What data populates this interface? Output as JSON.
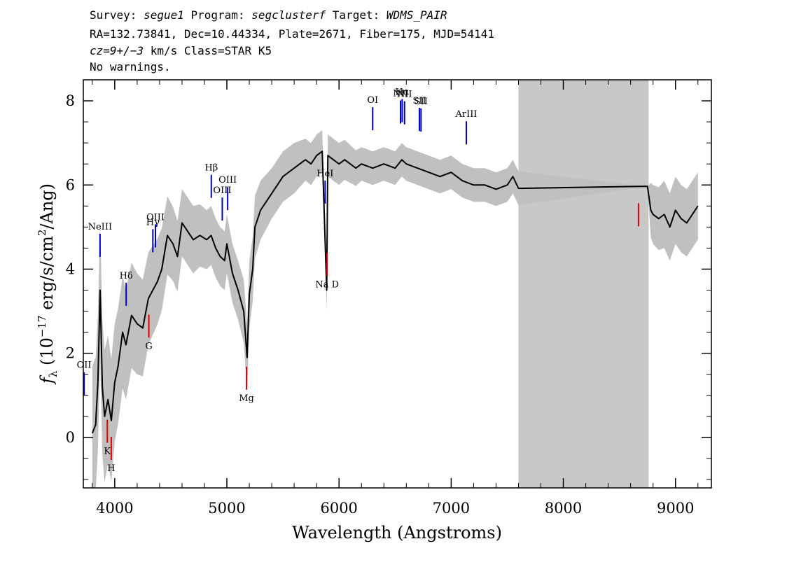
{
  "header": {
    "line1": [
      {
        "text": "Survey: ",
        "italic": false
      },
      {
        "text": "segue1",
        "italic": true
      },
      {
        "text": " Program: ",
        "italic": false
      },
      {
        "text": "segclusterf",
        "italic": true
      },
      {
        "text": " Target: ",
        "italic": false
      },
      {
        "text": "WDMS_PAIR",
        "italic": true
      }
    ],
    "line2": "RA=132.73841, Dec=10.44334, Plate=2671, Fiber=175, MJD=54141",
    "line3": [
      {
        "text": "cz=9+/−3",
        "italic": true
      },
      {
        "text": " km/s Class=STAR K5",
        "italic": false
      }
    ],
    "line4": "No warnings."
  },
  "chart_data": {
    "type": "line",
    "xlabel": "Wavelength (Angstroms)",
    "ylabel": "fλ (10⁻¹⁷ erg/s/cm²/Ang)",
    "xlim": [
      3720,
      9320
    ],
    "ylim": [
      -1.2,
      8.5
    ],
    "x_ticks": [
      4000,
      5000,
      6000,
      7000,
      8000,
      9000
    ],
    "y_ticks": [
      0,
      2,
      4,
      6,
      8
    ],
    "masked_region": [
      7600,
      8760
    ],
    "colors": {
      "flux": "#000000",
      "error": "#c0c0c0",
      "mask": "#c8c8c8",
      "emission": "#0000cc",
      "absorption": "#dd0000"
    },
    "series": [
      {
        "style": "flux",
        "x": [
          3800,
          3830,
          3850,
          3870,
          3890,
          3910,
          3940,
          3970,
          4000,
          4030,
          4070,
          4100,
          4150,
          4200,
          4250,
          4300,
          4340,
          4380,
          4420,
          4470,
          4520,
          4560,
          4600,
          4650,
          4700,
          4760,
          4820,
          4860,
          4900,
          4940,
          4980,
          5000,
          5050,
          5100,
          5150,
          5180,
          5200,
          5230,
          5250,
          5300,
          5350,
          5400,
          5450,
          5500,
          5550,
          5600,
          5650,
          5700,
          5750,
          5800,
          5850,
          5890,
          5900,
          5950,
          6000,
          6050,
          6100,
          6150,
          6200,
          6300,
          6400,
          6500,
          6560,
          6600,
          6700,
          6800,
          6900,
          7000,
          7100,
          7200,
          7300,
          7400,
          7500,
          7550,
          7600,
          8750,
          8780,
          8800,
          8850,
          8900,
          8950,
          9000,
          9050,
          9100,
          9150,
          9200
        ],
        "y": [
          0.1,
          0.3,
          1.3,
          3.5,
          1.2,
          0.5,
          0.9,
          0.4,
          1.3,
          1.7,
          2.5,
          2.2,
          2.9,
          2.7,
          2.6,
          3.3,
          3.5,
          3.7,
          4.0,
          4.8,
          4.6,
          4.3,
          5.1,
          4.9,
          4.7,
          4.8,
          4.7,
          4.8,
          4.5,
          4.3,
          4.2,
          4.6,
          3.9,
          3.5,
          3.0,
          1.9,
          3.4,
          4.0,
          5.0,
          5.4,
          5.6,
          5.8,
          6.0,
          6.2,
          6.3,
          6.4,
          6.5,
          6.6,
          6.5,
          6.7,
          6.8,
          3.5,
          6.7,
          6.6,
          6.5,
          6.6,
          6.5,
          6.4,
          6.5,
          6.4,
          6.5,
          6.4,
          6.6,
          6.5,
          6.4,
          6.3,
          6.2,
          6.3,
          6.1,
          6.0,
          6.0,
          5.9,
          6.0,
          6.2,
          5.92,
          5.97,
          5.4,
          5.3,
          5.2,
          5.3,
          5.0,
          5.4,
          5.2,
          5.1,
          5.3,
          5.5
        ]
      },
      {
        "style": "error",
        "x": [
          3800,
          3900,
          4000,
          4100,
          4200,
          4300,
          4400,
          4500,
          4600,
          4700,
          4800,
          4900,
          5000,
          5100,
          5200,
          5300,
          5400,
          5500,
          5600,
          5700,
          5800,
          5900,
          6000,
          6200,
          6400,
          6600,
          6800,
          7000,
          7200,
          7400,
          7600,
          8760,
          8800,
          8900,
          9000,
          9100,
          9200
        ],
        "y": [
          1.6,
          1.6,
          1.4,
          1.3,
          1.2,
          1.1,
          1.0,
          0.9,
          0.8,
          0.8,
          0.7,
          0.7,
          0.7,
          0.7,
          0.8,
          0.7,
          0.6,
          0.6,
          0.6,
          0.5,
          0.5,
          0.5,
          0.5,
          0.4,
          0.4,
          0.4,
          0.4,
          0.4,
          0.4,
          0.4,
          0.4,
          0.6,
          0.7,
          0.8,
          0.8,
          0.8,
          0.8
        ]
      }
    ],
    "annotations": [
      {
        "label": "OII",
        "x": 3727,
        "kind": "emission"
      },
      {
        "label": "NeIII",
        "x": 3869,
        "kind": "emission"
      },
      {
        "label": "Hδ",
        "x": 4102,
        "kind": "emission"
      },
      {
        "label": "Hγ",
        "x": 4340,
        "kind": "emission"
      },
      {
        "label": "OIII",
        "x": 4363,
        "kind": "emission"
      },
      {
        "label": "Hβ",
        "x": 4861,
        "kind": "emission"
      },
      {
        "label": "OIII",
        "x": 4959,
        "kind": "emission"
      },
      {
        "label": "OIII",
        "x": 5007,
        "kind": "emission"
      },
      {
        "label": "HeI",
        "x": 5876,
        "kind": "emission"
      },
      {
        "label": "OI",
        "x": 6300,
        "kind": "emission"
      },
      {
        "label": "NII",
        "x": 6548,
        "kind": "emission"
      },
      {
        "label": "Hα",
        "x": 6563,
        "kind": "emission"
      },
      {
        "label": "NII",
        "x": 6584,
        "kind": "emission"
      },
      {
        "label": "SII",
        "x": 6717,
        "kind": "emission"
      },
      {
        "label": "SII",
        "x": 6731,
        "kind": "emission"
      },
      {
        "label": "ArIII",
        "x": 7135,
        "kind": "emission"
      },
      {
        "label": "K",
        "x": 3934,
        "kind": "absorption"
      },
      {
        "label": "H",
        "x": 3969,
        "kind": "absorption"
      },
      {
        "label": "G",
        "x": 4304,
        "kind": "absorption"
      },
      {
        "label": "Mg",
        "x": 5175,
        "kind": "absorption"
      },
      {
        "label": "Na D",
        "x": 5894,
        "kind": "absorption"
      },
      {
        "label": "",
        "x": 8670,
        "kind": "absorption"
      }
    ]
  }
}
